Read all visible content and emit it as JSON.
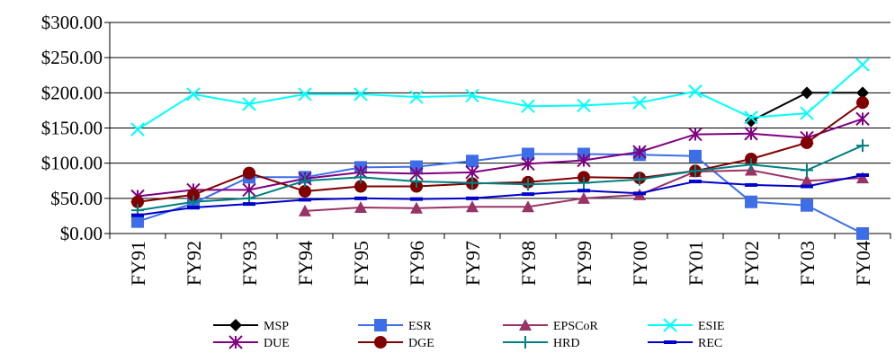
{
  "chart_data": {
    "type": "line",
    "title": "",
    "xlabel": "",
    "ylabel": "",
    "ylim": [
      0,
      300
    ],
    "yticks": [
      "$0.00",
      "$50.00",
      "$100.00",
      "$150.00",
      "$200.00",
      "$250.00",
      "$300.00"
    ],
    "grid": "horizontal",
    "legend_position": "bottom",
    "categories": [
      "FY91",
      "FY92",
      "FY93",
      "FY94",
      "FY95",
      "FY96",
      "FY97",
      "FY98",
      "FY99",
      "FY00",
      "FY01",
      "FY02",
      "FY03",
      "FY04"
    ],
    "series": [
      {
        "name": "MSP",
        "color": "#000000",
        "marker": "diamond",
        "values": [
          null,
          null,
          null,
          null,
          null,
          null,
          null,
          null,
          null,
          null,
          null,
          160,
          200,
          200
        ]
      },
      {
        "name": "ESR",
        "color": "#3d6ee8",
        "marker": "square",
        "values": [
          17,
          43,
          80,
          80,
          94,
          95,
          103,
          113,
          113,
          112,
          110,
          45,
          40,
          0
        ]
      },
      {
        "name": "EPSCoR",
        "color": "#993366",
        "marker": "triangle",
        "values": [
          null,
          null,
          null,
          32,
          37,
          36,
          38,
          38,
          50,
          55,
          88,
          90,
          75,
          79
        ]
      },
      {
        "name": "ESIE",
        "color": "#00ffff",
        "marker": "x",
        "values": [
          148,
          198,
          184,
          198,
          198,
          194,
          196,
          181,
          182,
          186,
          202,
          165,
          171,
          240
        ]
      },
      {
        "name": "DUE",
        "color": "#800080",
        "marker": "star",
        "values": [
          53,
          62,
          62,
          78,
          87,
          85,
          87,
          99,
          104,
          116,
          141,
          142,
          136,
          163
        ]
      },
      {
        "name": "DGE",
        "color": "#800000",
        "marker": "circle",
        "values": [
          45,
          55,
          86,
          60,
          67,
          67,
          71,
          73,
          80,
          79,
          89,
          106,
          129,
          186
        ]
      },
      {
        "name": "HRD",
        "color": "#008080",
        "marker": "plus",
        "values": [
          33,
          45,
          50,
          75,
          80,
          74,
          72,
          70,
          72,
          77,
          89,
          98,
          90,
          125
        ]
      },
      {
        "name": "REC",
        "color": "#0000cc",
        "marker": "dash",
        "values": [
          26,
          37,
          42,
          48,
          50,
          49,
          50,
          56,
          61,
          57,
          74,
          69,
          67,
          83
        ]
      }
    ]
  }
}
